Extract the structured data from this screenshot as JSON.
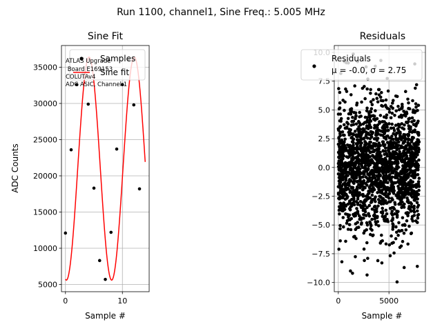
{
  "suptitle": "Run 1100, channel1, Sine Freq.: 5.005 MHz",
  "chart_data": [
    {
      "type": "scatter",
      "title": "Sine Fit",
      "xlabel": "Sample #",
      "ylabel": "ADC Counts",
      "xlim": [
        -0.7,
        14.7
      ],
      "ylim": [
        4000,
        38000
      ],
      "xticks": [
        0,
        10
      ],
      "yticks": [
        5000,
        10000,
        15000,
        20000,
        25000,
        30000,
        35000
      ],
      "grid": true,
      "legend": {
        "placement": "top-right",
        "entries": [
          "Samples",
          "Sine fit"
        ]
      },
      "annotation": [
        "ATLAS Upgrade",
        " Board E169153",
        "COLUTAv4",
        "ADC ASIC, Channel 1"
      ],
      "series": [
        {
          "name": "Samples",
          "marker": "dot",
          "color": "#000000",
          "x": [
            0,
            1,
            2,
            3,
            4,
            5,
            6,
            7,
            8,
            9,
            10,
            11,
            12,
            13
          ],
          "y": [
            12100,
            23600,
            32600,
            36200,
            29900,
            18300,
            8300,
            5700,
            12200,
            23700,
            32600,
            36100,
            29800,
            18200
          ]
        },
        {
          "name": "Sine fit",
          "color": "#ff0000",
          "fit": {
            "offset": 21000,
            "amplitude": 15400,
            "period": 7.95,
            "phase_at_x0": -1.7
          },
          "x_range": [
            0,
            14
          ]
        }
      ]
    },
    {
      "type": "scatter",
      "title": "Residuals",
      "xlabel": "Sample #",
      "ylabel": "",
      "xlim": [
        -400,
        8600
      ],
      "ylim": [
        -10.8,
        10.6
      ],
      "xticks": [
        0,
        5000
      ],
      "yticks": [
        -10.0,
        -7.5,
        -5.0,
        -2.5,
        0.0,
        2.5,
        5.0,
        7.5,
        10.0
      ],
      "ytick_labels": [
        "−10.0",
        "−7.5",
        "−5.0",
        "−2.5",
        "0.0",
        "2.5",
        "5.0",
        "7.5",
        "10.0"
      ],
      "grid": true,
      "legend": {
        "placement": "top-right",
        "entries": [
          "Residuals",
          "μ = -0.0, σ = 2.75"
        ]
      },
      "series": [
        {
          "name": "Residuals",
          "marker": "dot",
          "color": "#000000",
          "distribution": {
            "n": 1900,
            "x_min": 0,
            "x_max": 8000,
            "mu": -0.0,
            "sigma": 2.75,
            "y_min": -10,
            "y_max": 10
          },
          "outliers": [
            {
              "x": 600,
              "y": 9.2
            },
            {
              "x": 1900,
              "y": 9.2
            },
            {
              "x": 4200,
              "y": 9.3
            },
            {
              "x": 800,
              "y": 9.1
            },
            {
              "x": 7550,
              "y": 9.0
            },
            {
              "x": 3650,
              "y": 8.8
            },
            {
              "x": 1200,
              "y": -9.0
            },
            {
              "x": 1400,
              "y": -9.2
            },
            {
              "x": 5800,
              "y": -9.95
            },
            {
              "x": 350,
              "y": -8.2
            },
            {
              "x": 6500,
              "y": -8.7
            },
            {
              "x": 7800,
              "y": -8.6
            },
            {
              "x": 2900,
              "y": -7.9
            },
            {
              "x": 3900,
              "y": -8.1
            },
            {
              "x": 4300,
              "y": -8.3
            }
          ]
        }
      ]
    }
  ]
}
